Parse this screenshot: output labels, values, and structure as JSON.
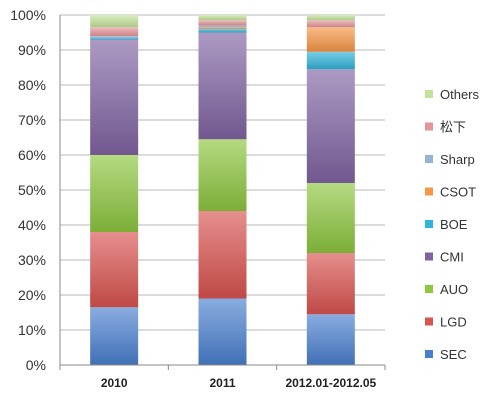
{
  "chart_data": {
    "type": "bar",
    "stacked": true,
    "percent": true,
    "categories": [
      "2010",
      "2011",
      "2012.01-2012.05"
    ],
    "ylim": [
      0,
      100
    ],
    "yticks": [
      "0%",
      "10%",
      "20%",
      "30%",
      "40%",
      "50%",
      "60%",
      "70%",
      "80%",
      "90%",
      "100%"
    ],
    "grid": true,
    "legend_position": "right",
    "series": [
      {
        "name": "SEC",
        "color": "#4a7fcf",
        "values": [
          16.5,
          19.0,
          14.5
        ]
      },
      {
        "name": "LGD",
        "color": "#d9534f",
        "values": [
          21.5,
          25.0,
          17.5
        ]
      },
      {
        "name": "AUO",
        "color": "#8dc63f",
        "values": [
          22.0,
          20.5,
          20.0
        ]
      },
      {
        "name": "CMI",
        "color": "#8064a2",
        "values": [
          33.0,
          30.5,
          32.5
        ]
      },
      {
        "name": "BOE",
        "color": "#31b4d9",
        "values": [
          0.5,
          1.0,
          5.0
        ]
      },
      {
        "name": "CSOT",
        "color": "#f79646",
        "values": [
          0.0,
          0.5,
          7.0
        ]
      },
      {
        "name": "Sharp",
        "color": "#95b3d7",
        "values": [
          0.5,
          0.5,
          0.0
        ]
      },
      {
        "name": "松下",
        "color": "#e6969a",
        "values": [
          2.5,
          1.5,
          2.0
        ]
      },
      {
        "name": "Others",
        "color": "#c3e39b",
        "values": [
          3.5,
          1.5,
          1.5
        ]
      }
    ],
    "legend_order": [
      "Others",
      "松下",
      "Sharp",
      "CSOT",
      "BOE",
      "CMI",
      "AUO",
      "LGD",
      "SEC"
    ]
  }
}
